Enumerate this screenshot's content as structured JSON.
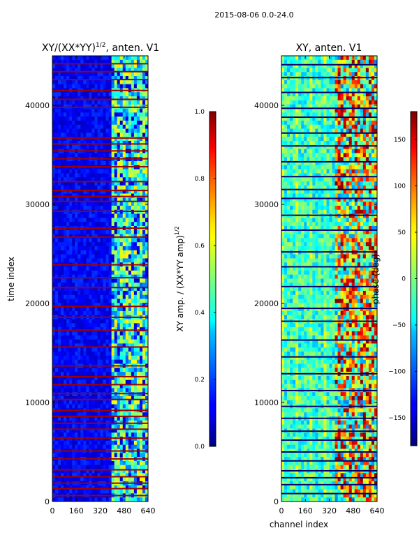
{
  "figure": {
    "suptitle": "2015-08-06 0.0-24.0"
  },
  "chart_data": [
    {
      "type": "heatmap",
      "title": "XY/(XX*YY)",
      "title_exponent": "1/2",
      "title_suffix": ", anten. V1",
      "xlabel": "",
      "ylabel": "time index",
      "xlim": [
        0,
        640
      ],
      "ylim": [
        0,
        45000
      ],
      "xticks": [
        "0",
        "160",
        "320",
        "480",
        "640"
      ],
      "yticks": [
        "0",
        "10000",
        "20000",
        "30000",
        "40000"
      ],
      "colorbar": {
        "label": "XY amp. / (XX*YY amp)",
        "label_exponent": "1/2",
        "range": [
          0.0,
          1.0
        ],
        "ticks": [
          "0.0",
          "0.2",
          "0.4",
          "0.6",
          "0.8",
          "1.0"
        ]
      },
      "bright_channel_range": [
        400,
        640
      ],
      "high_rows": [
        600,
        1300,
        1850,
        2500,
        3200,
        4300,
        5100,
        6400,
        7300,
        7900,
        8600,
        9200,
        10300,
        10900,
        11800,
        12600,
        13700,
        15600,
        17300,
        18600,
        19700,
        21600,
        22600,
        23900,
        26700,
        27600,
        29300,
        30300,
        30800,
        31400,
        32300,
        33800,
        34600,
        35400,
        36100,
        36700,
        39800,
        40600,
        41500,
        42600,
        43400,
        44200
      ]
    },
    {
      "type": "heatmap",
      "title": "XY, anten. V1",
      "xlabel": "channel index",
      "ylabel": "",
      "xlim": [
        0,
        640
      ],
      "ylim": [
        0,
        45000
      ],
      "xticks": [
        "0",
        "160",
        "320",
        "480",
        "640"
      ],
      "yticks": [
        "0",
        "10000",
        "20000",
        "30000",
        "40000"
      ],
      "colorbar": {
        "label": "phase (deg)",
        "range": [
          -180,
          180
        ],
        "ticks": [
          "−150",
          "−100",
          "−50",
          "0",
          "50",
          "100",
          "150"
        ]
      },
      "dark_rows": [
        800,
        1700,
        2400,
        3100,
        4100,
        5000,
        6200,
        7100,
        8400,
        9600,
        11200,
        12900,
        14600,
        16300,
        18200,
        19500,
        21700,
        23700,
        25200,
        27400,
        28900,
        30600,
        31500,
        32800,
        34300,
        35900,
        37200,
        38800,
        39700,
        41300,
        42800,
        44100
      ]
    }
  ]
}
